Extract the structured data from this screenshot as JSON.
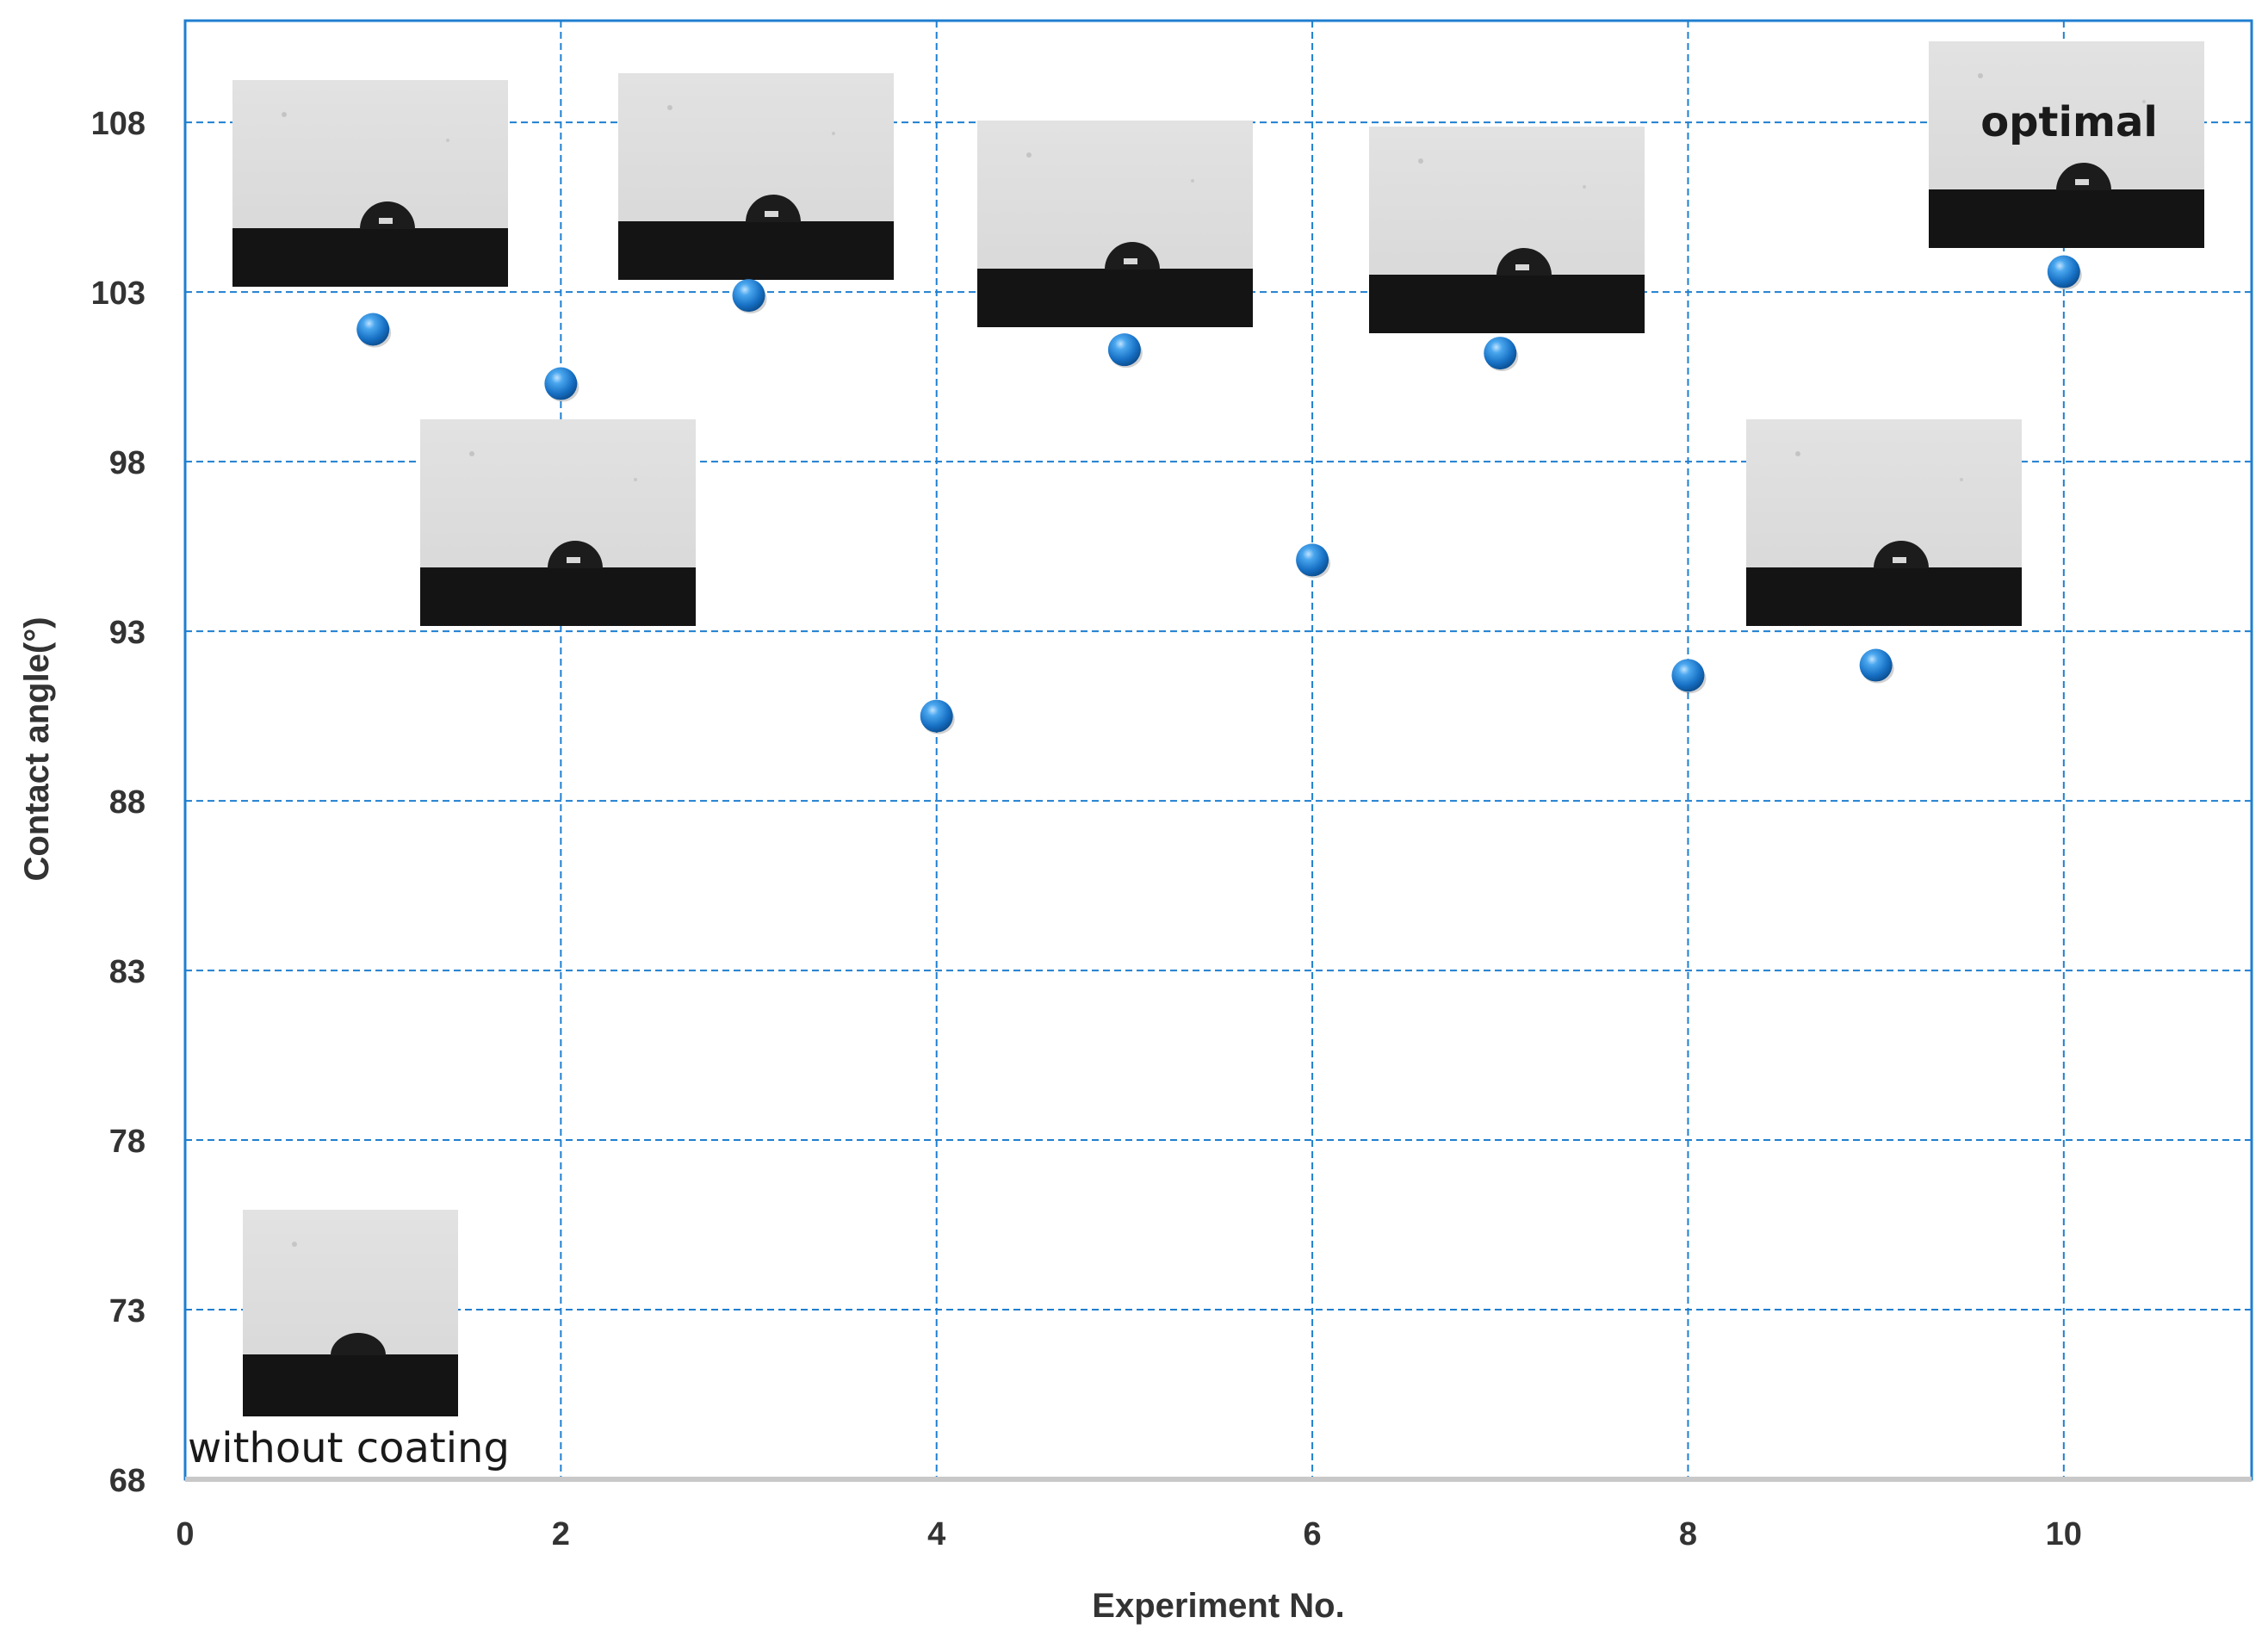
{
  "chart_data": {
    "type": "scatter",
    "title": "",
    "xlabel": "Experiment No.",
    "ylabel": "Contact angle(°)",
    "xlim": [
      0,
      11
    ],
    "ylim": [
      68,
      111
    ],
    "xticks": [
      0,
      2,
      4,
      6,
      8,
      10
    ],
    "yticks": [
      68,
      73,
      78,
      83,
      88,
      93,
      98,
      103,
      108
    ],
    "grid": true,
    "marker_color": "#1f7fd0",
    "grid_color": "#1f7fd0",
    "series": [
      {
        "name": "Contact angle",
        "x": [
          1,
          2,
          3,
          4,
          5,
          6,
          7,
          8,
          9,
          10
        ],
        "y": [
          101.9,
          100.3,
          102.9,
          90.5,
          101.3,
          95.1,
          101.2,
          91.7,
          92.0,
          103.6
        ]
      }
    ],
    "annotations": [
      {
        "text": "without coating",
        "near": "bottom-left inset"
      },
      {
        "text": "optimal",
        "near": "experiment 10 inset"
      }
    ]
  }
}
